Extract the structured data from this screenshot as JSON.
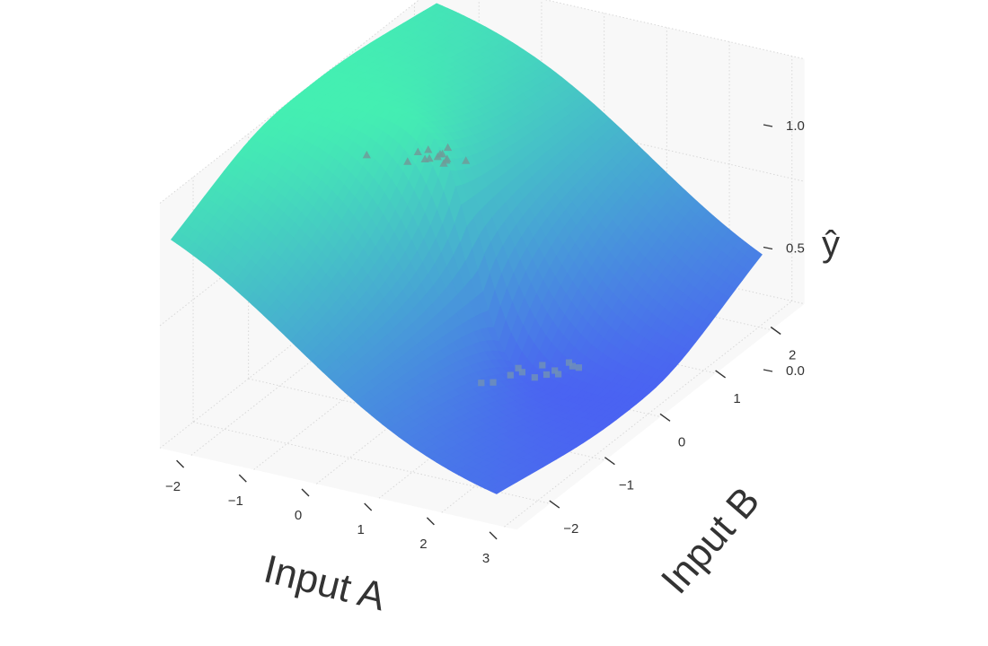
{
  "chart_data": {
    "type": "surface",
    "surface_function": "logistic",
    "x_axis": {
      "label": "Input A",
      "ticks": [
        -2,
        -1,
        0,
        1,
        2,
        3
      ],
      "tick_labels": [
        "−2",
        "−1",
        "0",
        "1",
        "2",
        "3"
      ],
      "range": [
        -2.5,
        3.2
      ]
    },
    "y_axis": {
      "label": "Input B",
      "ticks": [
        -2,
        -1,
        0,
        1,
        2
      ],
      "tick_labels": [
        "−2",
        "−1",
        "0",
        "1",
        "2"
      ],
      "range": [
        -2.6,
        2.6
      ]
    },
    "z_axis": {
      "label": "ŷ",
      "ticks": [
        0.0,
        0.5,
        1.0
      ],
      "tick_labels": [
        "0.0",
        "0.5",
        "1.0"
      ],
      "range": [
        0,
        1
      ]
    },
    "colors": {
      "high": "#44EFB2",
      "low": "#4A63F2",
      "triangle_marker": "#6E9C99",
      "square_marker": "#6E8FB8",
      "panel_background": "#F8F8F8",
      "grid": "#D8D8D8"
    },
    "series": [
      {
        "name": "",
        "marker": "triangle",
        "points": [
          {
            "x": -0.7,
            "y": -0.9,
            "z": 1.0
          },
          {
            "x": -0.4,
            "y": -0.5,
            "z": 0.92
          },
          {
            "x": -0.3,
            "y": -0.3,
            "z": 0.9
          },
          {
            "x": 0.0,
            "y": -0.3,
            "z": 0.9
          },
          {
            "x": -0.5,
            "y": -0.2,
            "z": 0.9
          },
          {
            "x": -0.2,
            "y": 0.0,
            "z": 0.9
          },
          {
            "x": -0.6,
            "y": 0.1,
            "z": 0.85
          },
          {
            "x": -0.45,
            "y": -0.05,
            "z": 0.85
          },
          {
            "x": -0.45,
            "y": 0.1,
            "z": 0.83
          },
          {
            "x": -0.5,
            "y": 0.2,
            "z": 0.82
          },
          {
            "x": -0.3,
            "y": 0.1,
            "z": 0.83
          },
          {
            "x": -0.55,
            "y": 0.3,
            "z": 0.8
          },
          {
            "x": 0.0,
            "y": 0.1,
            "z": 0.84
          },
          {
            "x": -0.4,
            "y": 0.2,
            "z": 0.8
          }
        ]
      },
      {
        "name": "",
        "marker": "square",
        "points": [
          {
            "x": 0.6,
            "y": -0.3,
            "z": 0.04
          },
          {
            "x": 0.7,
            "y": -0.2,
            "z": 0.03
          },
          {
            "x": 0.9,
            "y": 0.1,
            "z": 0.03
          },
          {
            "x": 0.8,
            "y": 0.0,
            "z": 0.03
          },
          {
            "x": 1.1,
            "y": 0.1,
            "z": 0.02
          },
          {
            "x": 1.2,
            "y": 0.2,
            "z": 0.02
          },
          {
            "x": 0.75,
            "y": 0.2,
            "z": 0.02
          },
          {
            "x": 1.0,
            "y": 0.35,
            "z": 0.02
          },
          {
            "x": 1.2,
            "y": 0.35,
            "z": 0.01
          },
          {
            "x": 1.3,
            "y": 0.3,
            "z": 0.01
          },
          {
            "x": 1.35,
            "y": 0.5,
            "z": 0.01
          },
          {
            "x": 1.45,
            "y": 0.5,
            "z": 0.01
          },
          {
            "x": 1.25,
            "y": 0.55,
            "z": 0.01
          }
        ]
      }
    ]
  }
}
